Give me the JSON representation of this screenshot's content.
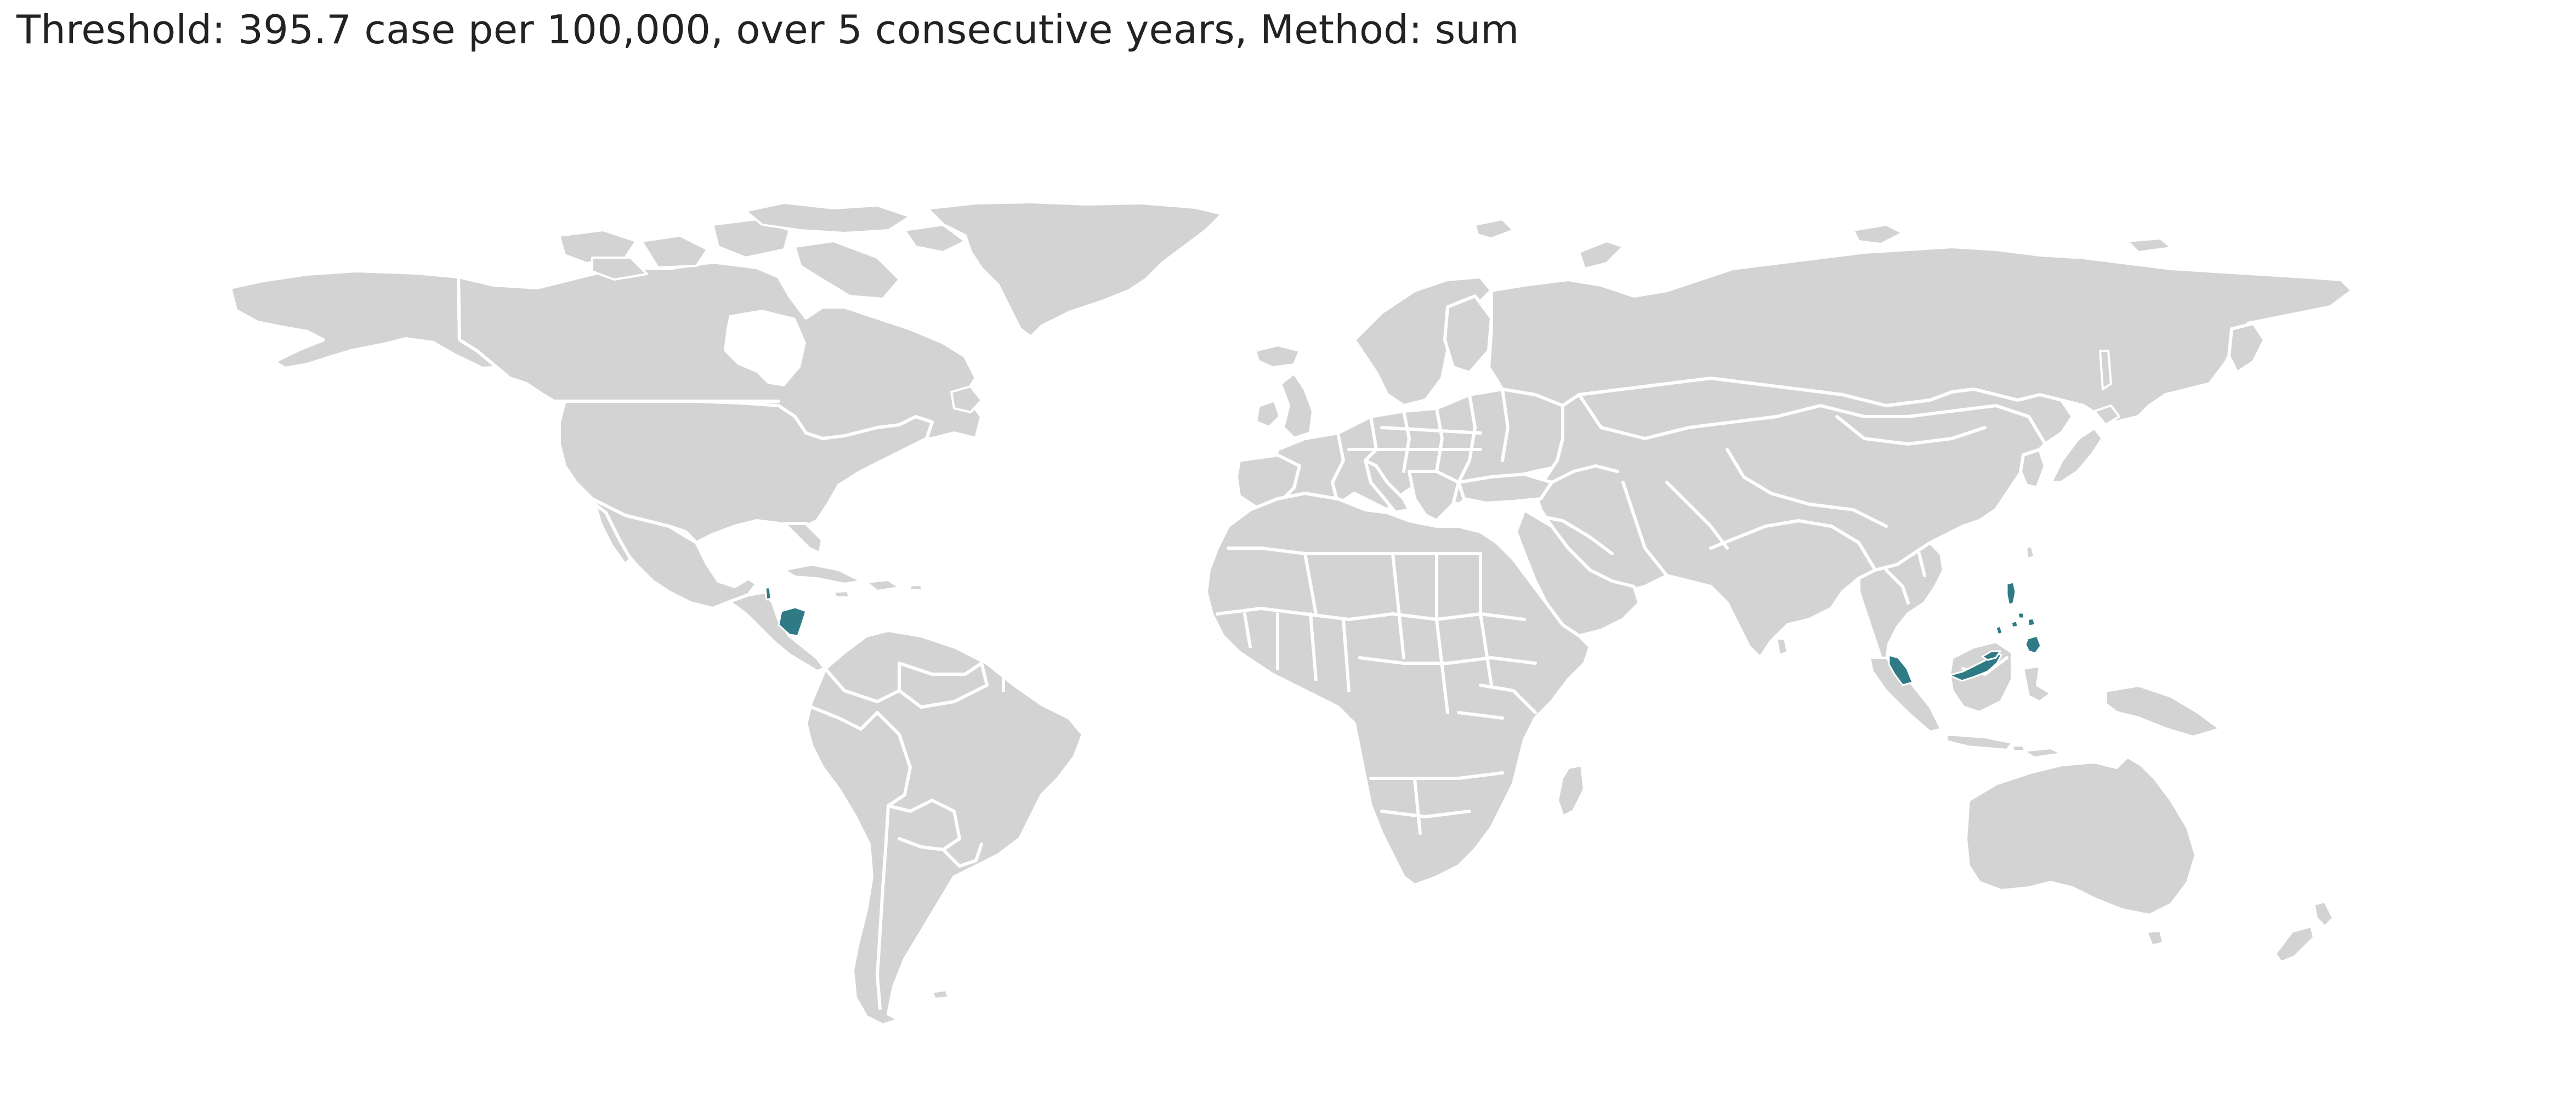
{
  "map": {
    "title": "Threshold: 395.7 case per 100,000, over 5 consecutive years, Method: sum",
    "projection": "equirectangular world",
    "colors": {
      "background": "#ffffff",
      "land": "#d3d3d3",
      "borders": "#ffffff",
      "highlight": "#2e7b86",
      "title_text": "#222222"
    },
    "highlighted_regions": [
      {
        "name": "Nicaragua",
        "status": "above threshold"
      },
      {
        "name": "Belize",
        "status": "above threshold"
      },
      {
        "name": "Peninsular Malaysia",
        "status": "above threshold"
      },
      {
        "name": "Sarawak / Sabah (Malaysian Borneo)",
        "status": "above threshold"
      },
      {
        "name": "Philippines",
        "status": "above threshold"
      }
    ]
  }
}
